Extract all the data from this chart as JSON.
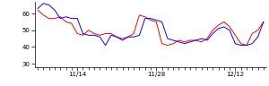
{
  "red_y": [
    62,
    59,
    57,
    57,
    58,
    55,
    54,
    48,
    47,
    50,
    48,
    47,
    48,
    48,
    46,
    45,
    46,
    48,
    59,
    58,
    56,
    55,
    42,
    41,
    42,
    44,
    43,
    44,
    44,
    43,
    45,
    50,
    53,
    55,
    52,
    47,
    42,
    41,
    48,
    50,
    55
  ],
  "blue_y": [
    63,
    66,
    65,
    62,
    57,
    58,
    57,
    57,
    48,
    47,
    47,
    46,
    41,
    47,
    46,
    44,
    46,
    46,
    47,
    57,
    57,
    56,
    55,
    45,
    44,
    43,
    42,
    43,
    44,
    45,
    44,
    48,
    51,
    52,
    50,
    42,
    41,
    41,
    42,
    46,
    55
  ],
  "xtick_positions": [
    7,
    21,
    35
  ],
  "xtick_labels": [
    "11/14",
    "11/28",
    "12/12"
  ],
  "ytick_positions": [
    30,
    40,
    50,
    60
  ],
  "ytick_labels": [
    "30",
    "40",
    "50",
    "60"
  ],
  "ylim": [
    28,
    67
  ],
  "xlim_left": -0.5,
  "red_color": "#ff0000",
  "blue_color": "#0000ff",
  "bg_color": "#ffffff",
  "linewidth": 0.7
}
